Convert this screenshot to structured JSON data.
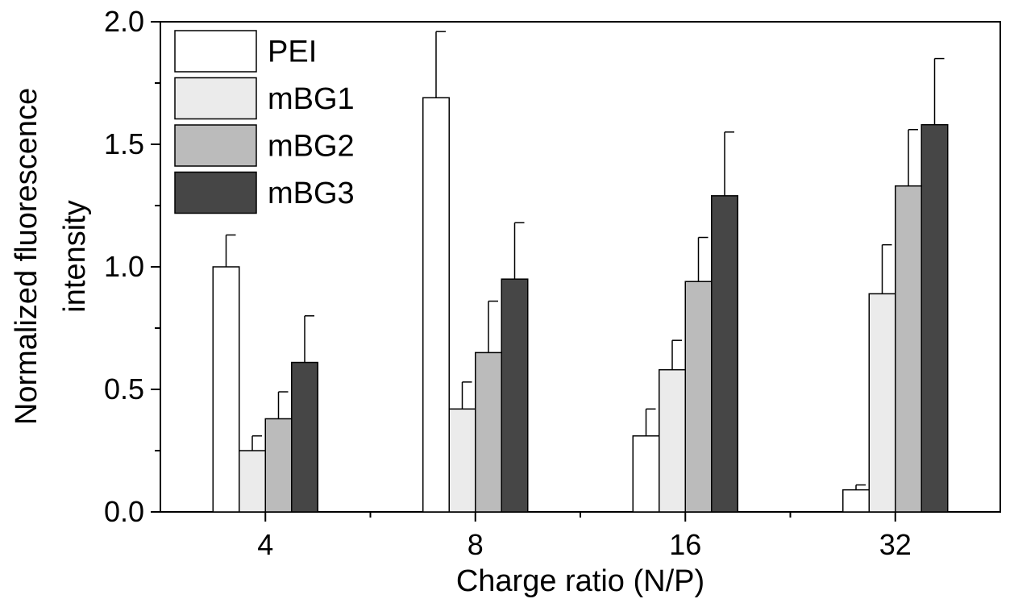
{
  "chart_data": {
    "type": "bar",
    "title": "",
    "xlabel": "Charge ratio (N/P)",
    "ylabel_line1": "Normalized fluorescence",
    "ylabel_line2": "intensity",
    "categories": [
      "4",
      "8",
      "16",
      "32"
    ],
    "ylim": [
      0,
      2.0
    ],
    "yticks": [
      "0.0",
      "0.5",
      "1.0",
      "1.5",
      "2.0"
    ],
    "grid": false,
    "legend_position": "top-left",
    "series": [
      {
        "name": "PEI",
        "color": "#ffffff",
        "values": [
          1.0,
          1.69,
          0.31,
          0.09
        ],
        "errors": [
          0.13,
          0.27,
          0.11,
          0.02
        ]
      },
      {
        "name": "mBG1",
        "color": "#ebebeb",
        "values": [
          0.25,
          0.42,
          0.58,
          0.89
        ],
        "errors": [
          0.06,
          0.11,
          0.12,
          0.2
        ]
      },
      {
        "name": "mBG2",
        "color": "#bbbbbb",
        "values": [
          0.38,
          0.65,
          0.94,
          1.33
        ],
        "errors": [
          0.11,
          0.21,
          0.18,
          0.23
        ]
      },
      {
        "name": "mBG3",
        "color": "#464646",
        "values": [
          0.61,
          0.95,
          1.29,
          1.58
        ],
        "errors": [
          0.19,
          0.23,
          0.26,
          0.27
        ]
      }
    ]
  }
}
